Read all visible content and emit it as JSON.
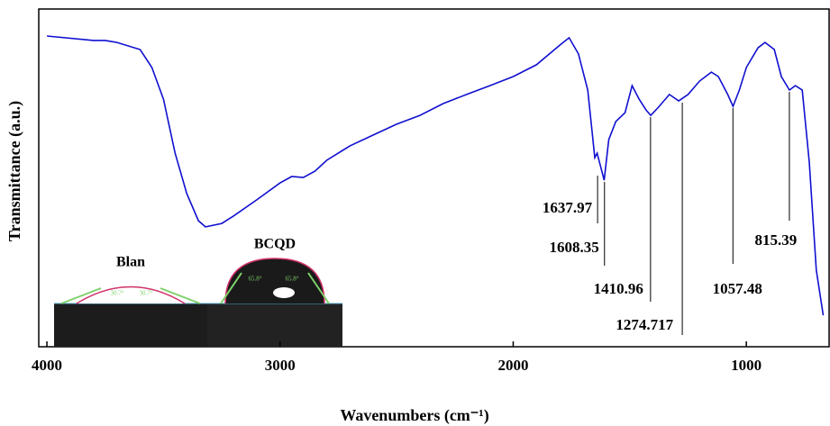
{
  "chart_data": {
    "type": "line",
    "x_label": "Wavenumbers (cm⁻¹)",
    "y_label": "Transmittance (a.u.)",
    "xlim": [
      4035,
      645
    ],
    "ylim": [
      0,
      100
    ],
    "xticks": [
      4000,
      3000,
      2000,
      1000
    ],
    "series": [
      {
        "color": "#1010d0",
        "x": [
          4000,
          3800,
          3750,
          3700,
          3600,
          3550,
          3500,
          3450,
          3400,
          3350,
          3320,
          3250,
          3200,
          3100,
          3000,
          2950,
          2900,
          2850,
          2800,
          2700,
          2600,
          2500,
          2400,
          2300,
          2200,
          2100,
          2000,
          1900,
          1800,
          1760,
          1720,
          1680,
          1650,
          1640,
          1625,
          1610,
          1590,
          1560,
          1520,
          1490,
          1460,
          1430,
          1410,
          1380,
          1330,
          1290,
          1250,
          1200,
          1150,
          1120,
          1080,
          1057,
          1030,
          1000,
          950,
          920,
          880,
          850,
          815,
          790,
          760,
          730,
          700,
          670
        ],
        "values": [
          92.0,
          90.7,
          90.7,
          90.1,
          88.0,
          82.7,
          73.3,
          57.3,
          45.3,
          37.3,
          35.5,
          36.5,
          38.7,
          43.5,
          48.5,
          50.4,
          50.1,
          52.0,
          55.2,
          59.5,
          62.7,
          65.9,
          68.5,
          72.0,
          74.7,
          77.3,
          80.0,
          83.5,
          89.3,
          91.5,
          86.7,
          76.0,
          56.0,
          57.3,
          53.3,
          49.3,
          61.3,
          66.7,
          69.3,
          77.3,
          73.3,
          70.1,
          68.5,
          70.7,
          74.7,
          72.8,
          74.7,
          78.7,
          81.3,
          80.0,
          74.7,
          71.2,
          76.0,
          82.7,
          88.5,
          90.1,
          88.0,
          80.0,
          76.0,
          77.3,
          76.0,
          54.7,
          22.7,
          9.3
        ]
      }
    ],
    "annotations": [
      {
        "x": 1637.97
      },
      {
        "x": 1608.35
      },
      {
        "x": 1410.96
      },
      {
        "x": 1274.717
      },
      {
        "x": 1057.48
      },
      {
        "x": 815.39
      }
    ],
    "inset": {
      "panels": [
        {
          "title": "Blan",
          "angles": [
            "30.7°",
            "30.7°"
          ]
        },
        {
          "title": "BCQD",
          "angles": [
            "65.8°",
            "65.8°"
          ]
        }
      ]
    }
  }
}
